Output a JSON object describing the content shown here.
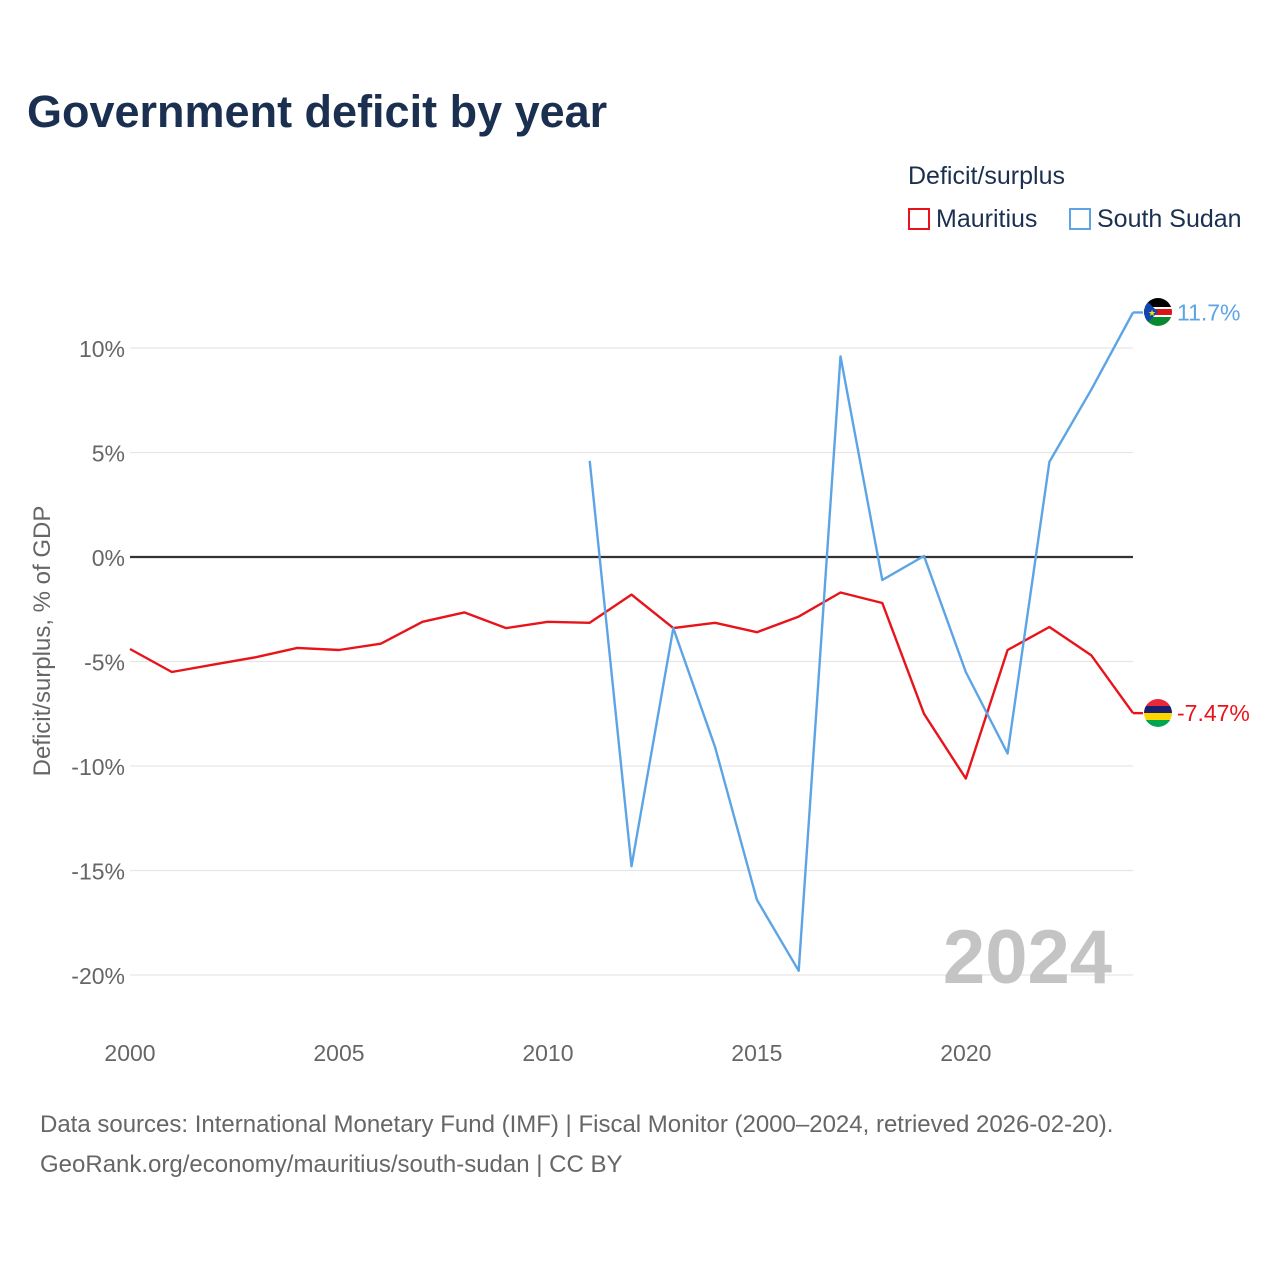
{
  "title": "Government deficit by year",
  "chart_data": {
    "type": "line",
    "title": "Government deficit by year",
    "ylabel": "Deficit/surplus, % of GDP",
    "xlabel": "",
    "xlim": [
      2000,
      2024
    ],
    "ylim": [
      -21,
      12
    ],
    "x_ticks": [
      2000,
      2005,
      2010,
      2015,
      2020
    ],
    "x_tick_labels": [
      "2000",
      "2005",
      "2010",
      "2015",
      "2020"
    ],
    "y_ticks": [
      10,
      5,
      0,
      -5,
      -10,
      -15,
      -20
    ],
    "y_tick_labels": [
      "10%",
      "5%",
      "0%",
      "-5%",
      "-10%",
      "-15%",
      "-20%"
    ],
    "legend_title": "Deficit/surplus",
    "watermark_year": "2024",
    "series": [
      {
        "name": "Mauritius",
        "color": "#e8141b",
        "end_label": "-7.47%",
        "flag": "mauritius-flag",
        "x": [
          2000,
          2001,
          2002,
          2003,
          2004,
          2005,
          2006,
          2007,
          2008,
          2009,
          2010,
          2011,
          2012,
          2013,
          2014,
          2015,
          2016,
          2017,
          2018,
          2019,
          2020,
          2021,
          2022,
          2023,
          2024
        ],
        "values": [
          -4.4,
          -5.5,
          -5.15,
          -4.8,
          -4.35,
          -4.45,
          -4.15,
          -3.1,
          -2.65,
          -3.4,
          -3.1,
          -3.15,
          -1.8,
          -3.4,
          -3.15,
          -3.6,
          -2.85,
          -1.7,
          -2.2,
          -7.5,
          -10.6,
          -4.45,
          -3.35,
          -4.7,
          -7.47
        ]
      },
      {
        "name": "South Sudan",
        "color": "#5da4e6",
        "end_label": "11.7%",
        "flag": "south-sudan-flag",
        "x": [
          2011,
          2012,
          2013,
          2014,
          2015,
          2016,
          2017,
          2018,
          2019,
          2020,
          2021,
          2022,
          2023,
          2024
        ],
        "values": [
          4.6,
          -14.8,
          -3.4,
          -9.1,
          -16.4,
          -19.8,
          9.6,
          -1.1,
          0.05,
          -5.5,
          -9.4,
          4.55,
          8.0,
          11.7
        ]
      }
    ]
  },
  "footer": {
    "line1": "Data sources: International Monetary Fund (IMF) | Fiscal Monitor (2000–2024, retrieved 2026-02-20).",
    "line2": "GeoRank.org/economy/mauritius/south-sudan | CC BY"
  }
}
